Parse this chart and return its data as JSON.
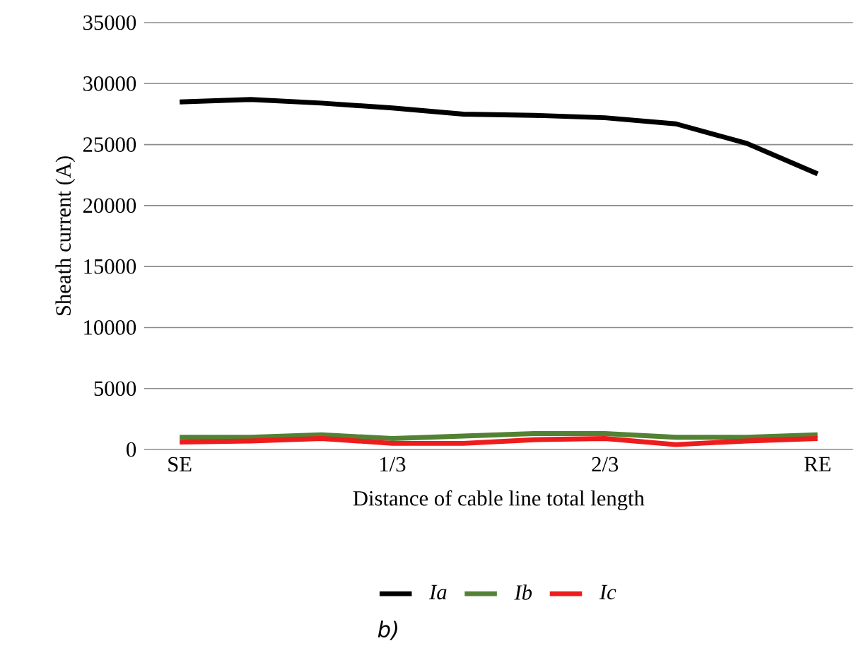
{
  "chart_data": {
    "type": "line",
    "xlabel": "Distance of cable line total length",
    "ylabel": "Sheath current (A)",
    "categories": [
      "SE",
      null,
      null,
      "1/3",
      null,
      null,
      "2/3",
      null,
      null,
      "RE"
    ],
    "series": [
      {
        "name": "Ia",
        "color": "#000000",
        "values": [
          28500,
          28700,
          28400,
          28000,
          27500,
          27400,
          27200,
          26700,
          25100,
          22600
        ]
      },
      {
        "name": "Ib",
        "color": "#548235",
        "values": [
          1000,
          1000,
          1200,
          900,
          1100,
          1300,
          1300,
          1000,
          1000,
          1200
        ]
      },
      {
        "name": "Ic",
        "color": "#ee1c1c",
        "values": [
          600,
          700,
          900,
          500,
          500,
          800,
          900,
          400,
          700,
          900
        ]
      }
    ],
    "ylim": [
      0,
      35000
    ],
    "yticks": [
      0,
      5000,
      10000,
      15000,
      20000,
      25000,
      30000,
      35000
    ],
    "grid": "y",
    "legend": "bottom",
    "marker": "none",
    "line_style": "solid",
    "annotations": [
      "b)"
    ]
  }
}
